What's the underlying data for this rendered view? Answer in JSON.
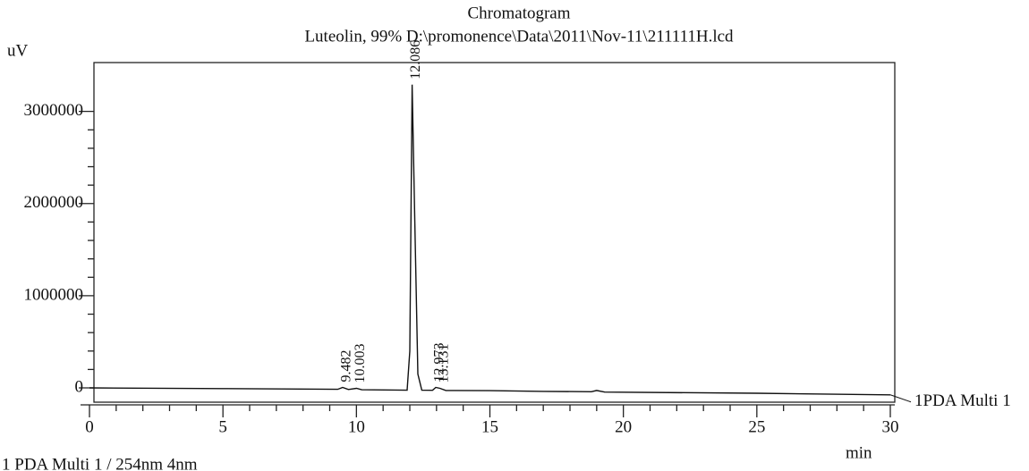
{
  "chart_data": {
    "type": "line",
    "title": "Chromatogram",
    "subtitle": "Luteolin, 99% D:\\promonence\\Data\\2011\\Nov-11\\211111H.lcd",
    "y_label": "uV",
    "x_label": "min",
    "footnote": "1 PDA Multi 1 / 254nm 4nm",
    "x": [
      0,
      5,
      9.3,
      9.482,
      9.7,
      10.003,
      10.2,
      11.9,
      12.0,
      12.086,
      12.2,
      12.3,
      12.45,
      12.85,
      12.973,
      13.131,
      13.35,
      15,
      17,
      18.8,
      19.0,
      19.3,
      25,
      30
    ],
    "series": [
      {
        "name": "1PDA Multi 1",
        "color": "#111111",
        "values": [
          0,
          -8000,
          -15000,
          5000,
          -17000,
          -5000,
          -20000,
          -25000,
          400000,
          3290000,
          1600000,
          150000,
          -25000,
          -26000,
          5000,
          -5000,
          -28000,
          -30000,
          -38000,
          -42000,
          -28000,
          -45000,
          -58000,
          -75000
        ]
      }
    ],
    "peak_labels": [
      9.482,
      10.003,
      12.086,
      12.973,
      13.131
    ],
    "xlim": [
      0,
      30
    ],
    "xticks": [
      0,
      5,
      10,
      15,
      20,
      25,
      30
    ],
    "ylim": [
      -155000,
      3530000
    ],
    "yticks": [
      0,
      1000000,
      2000000,
      3000000
    ]
  }
}
